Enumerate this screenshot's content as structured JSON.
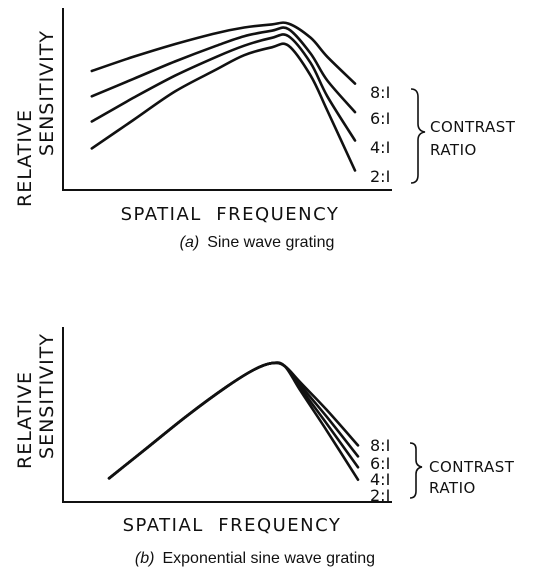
{
  "chart_data": [
    {
      "type": "line",
      "ylabel_line1": "RELATIVE",
      "ylabel_line2": "SENSITIVITY",
      "xlabel": "SPATIAL  FREQUENCY",
      "caption_letter": "(a)",
      "caption_text": "Sine wave grating",
      "legend_title_line1": "CONTRAST",
      "legend_title_line2": "RATIO",
      "x": [
        0.05,
        0.2,
        0.35,
        0.5,
        0.6,
        0.7,
        0.76,
        0.84,
        0.9,
        1.0
      ],
      "series": [
        {
          "name": "8:I",
          "values": [
            0.69,
            0.78,
            0.86,
            0.93,
            0.965,
            0.985,
            0.99,
            0.9,
            0.78,
            0.61
          ]
        },
        {
          "name": "6:I",
          "values": [
            0.53,
            0.64,
            0.75,
            0.85,
            0.91,
            0.945,
            0.955,
            0.8,
            0.63,
            0.43
          ]
        },
        {
          "name": "4:I",
          "values": [
            0.37,
            0.52,
            0.66,
            0.78,
            0.85,
            0.9,
            0.91,
            0.74,
            0.53,
            0.25
          ]
        },
        {
          "name": "2:I",
          "values": [
            0.2,
            0.38,
            0.56,
            0.7,
            0.79,
            0.84,
            0.85,
            0.66,
            0.44,
            0.06
          ]
        }
      ]
    },
    {
      "type": "line",
      "ylabel_line1": "RELATIVE",
      "ylabel_line2": "SENSITIVITY",
      "xlabel": "SPATIAL  FREQUENCY",
      "caption_letter": "(b)",
      "caption_text": "Exponential sine wave grating",
      "legend_title_line1": "CONTRAST",
      "legend_title_line2": "RATIO",
      "x": [
        0.05,
        0.2,
        0.35,
        0.5,
        0.6,
        0.67,
        0.72,
        0.78,
        0.88,
        1.0
      ],
      "series": [
        {
          "name": "8:I",
          "values": [
            0.1,
            0.33,
            0.56,
            0.77,
            0.89,
            0.94,
            0.92,
            0.8,
            0.6,
            0.34
          ]
        },
        {
          "name": "6:I",
          "values": [
            0.1,
            0.33,
            0.56,
            0.77,
            0.89,
            0.94,
            0.92,
            0.78,
            0.55,
            0.26
          ]
        },
        {
          "name": "4:I",
          "values": [
            0.1,
            0.33,
            0.56,
            0.77,
            0.89,
            0.94,
            0.92,
            0.76,
            0.5,
            0.18
          ]
        },
        {
          "name": "2:I",
          "values": [
            0.1,
            0.33,
            0.56,
            0.77,
            0.89,
            0.94,
            0.92,
            0.74,
            0.45,
            0.09
          ]
        }
      ]
    }
  ]
}
